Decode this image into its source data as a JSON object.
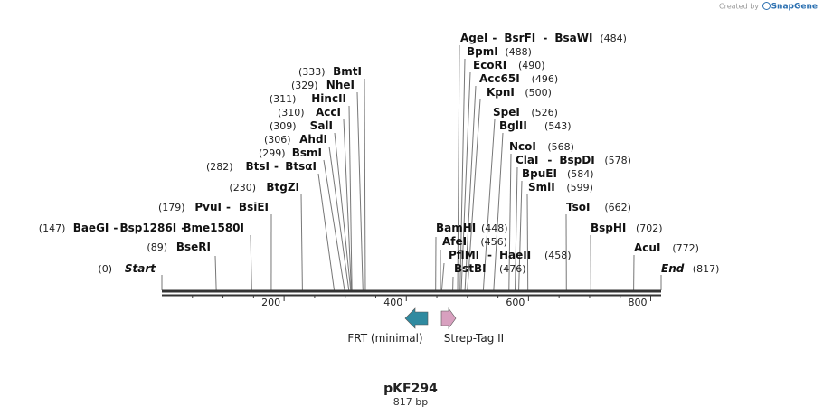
{
  "credit": {
    "prefix": "Created by",
    "brand": "SnapGene"
  },
  "plasmid": {
    "name": "pKF294",
    "length_label": "817 bp",
    "length": 817
  },
  "colors": {
    "frt": "#2f8aa0",
    "strep": "#d8a0bf",
    "line": "#333333",
    "stem": "#777777"
  },
  "ticks": [
    {
      "pos": 200,
      "label": "200"
    },
    {
      "pos": 400,
      "label": "400"
    },
    {
      "pos": 600,
      "label": "600"
    },
    {
      "pos": 800,
      "label": "800"
    }
  ],
  "ends": [
    {
      "name": "Start",
      "pos_label": "(0)",
      "pos": 0
    },
    {
      "name": "End",
      "pos_label": "(817)",
      "pos": 817
    }
  ],
  "sites": [
    {
      "names": [
        "BseRI"
      ],
      "pos_label": "(89)",
      "pos": 89
    },
    {
      "names": [
        "BaeGI",
        "Bsp1286I",
        "Bme1580I"
      ],
      "pos_label": "(147)",
      "pos": 147
    },
    {
      "names": [
        "PvuI",
        "BsiEI"
      ],
      "pos_label": "(179)",
      "pos": 179
    },
    {
      "names": [
        "BtgZI"
      ],
      "pos_label": "(230)",
      "pos": 230
    },
    {
      "names": [
        "BtsI",
        "BtsαI"
      ],
      "pos_label": "(282)",
      "pos": 282
    },
    {
      "names": [
        "BsmI"
      ],
      "pos_label": "(299)",
      "pos": 299
    },
    {
      "names": [
        "AhdI"
      ],
      "pos_label": "(306)",
      "pos": 306
    },
    {
      "names": [
        "SalI"
      ],
      "pos_label": "(309)",
      "pos": 309
    },
    {
      "names": [
        "AccI"
      ],
      "pos_label": "(310)",
      "pos": 310
    },
    {
      "names": [
        "HincII"
      ],
      "pos_label": "(311)",
      "pos": 311
    },
    {
      "names": [
        "NheI"
      ],
      "pos_label": "(329)",
      "pos": 329
    },
    {
      "names": [
        "BmtI"
      ],
      "pos_label": "(333)",
      "pos": 333
    },
    {
      "names": [
        "AgeI",
        "BsrFI",
        "BsaWI"
      ],
      "pos_label": "(484)",
      "pos": 484
    },
    {
      "names": [
        "BpmI"
      ],
      "pos_label": "(488)",
      "pos": 488
    },
    {
      "names": [
        "EcoRI"
      ],
      "pos_label": "(490)",
      "pos": 490
    },
    {
      "names": [
        "Acc65I"
      ],
      "pos_label": "(496)",
      "pos": 496
    },
    {
      "names": [
        "KpnI"
      ],
      "pos_label": "(500)",
      "pos": 500
    },
    {
      "names": [
        "SpeI"
      ],
      "pos_label": "(526)",
      "pos": 526
    },
    {
      "names": [
        "BglII"
      ],
      "pos_label": "(543)",
      "pos": 543
    },
    {
      "names": [
        "NcoI"
      ],
      "pos_label": "(568)",
      "pos": 568
    },
    {
      "names": [
        "ClaI",
        "BspDI"
      ],
      "pos_label": "(578)",
      "pos": 578
    },
    {
      "names": [
        "BpuEI"
      ],
      "pos_label": "(584)",
      "pos": 584
    },
    {
      "names": [
        "SmlI"
      ],
      "pos_label": "(599)",
      "pos": 599
    },
    {
      "names": [
        "TsoI"
      ],
      "pos_label": "(662)",
      "pos": 662
    },
    {
      "names": [
        "BspHI"
      ],
      "pos_label": "(702)",
      "pos": 702
    },
    {
      "names": [
        "AcuI"
      ],
      "pos_label": "(772)",
      "pos": 772
    },
    {
      "names": [
        "BamHI"
      ],
      "pos_label": "(448)",
      "pos": 448
    },
    {
      "names": [
        "AfeI"
      ],
      "pos_label": "(456)",
      "pos": 456
    },
    {
      "names": [
        "PflMI",
        "HaeII"
      ],
      "pos_label": "(458)",
      "pos": 458
    },
    {
      "names": [
        "BstBI"
      ],
      "pos_label": "(476)",
      "pos": 476
    }
  ],
  "features": [
    {
      "name": "FRT (minimal)",
      "direction": "left",
      "color": "#2f8aa0",
      "start": 448,
      "end": 476
    },
    {
      "name": "Strep-Tag II",
      "direction": "right",
      "color": "#d8a0bf",
      "start": 484,
      "end": 500
    }
  ]
}
